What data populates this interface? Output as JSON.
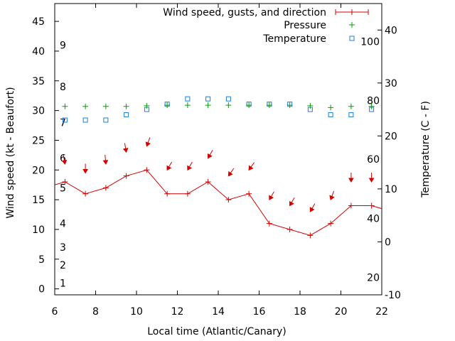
{
  "chart_data": {
    "type": "line",
    "xlabel": "Local time (Atlantic/Canary)",
    "ylabel_left": "Wind speed (kt - Beaufort)",
    "ylabel_right": "Temperature (C - F)",
    "xlim": [
      6,
      22
    ],
    "ylim_left": [
      -1,
      48
    ],
    "ylim_right": [
      -10,
      45
    ],
    "x_ticks": [
      6,
      8,
      10,
      12,
      14,
      16,
      18,
      20,
      22
    ],
    "y_ticks_left": [
      0,
      5,
      10,
      15,
      20,
      25,
      30,
      35,
      40,
      45
    ],
    "y_ticks_right": [
      -10,
      0,
      10,
      20,
      30,
      40
    ],
    "beaufort_labels": [
      {
        "text": "1",
        "kt": 1
      },
      {
        "text": "2",
        "kt": 4
      },
      {
        "text": "3",
        "kt": 7
      },
      {
        "text": "4",
        "kt": 11
      },
      {
        "text": "5",
        "kt": 17
      },
      {
        "text": "6",
        "kt": 22
      },
      {
        "text": "7",
        "kt": 28
      },
      {
        "text": "8",
        "kt": 34
      },
      {
        "text": "9",
        "kt": 41
      }
    ],
    "fahrenheit_labels": [
      {
        "text": "20",
        "temp_c": -6.7
      },
      {
        "text": "40",
        "temp_c": 4.4
      },
      {
        "text": "60",
        "temp_c": 15.6
      },
      {
        "text": "80",
        "temp_c": 26.7
      },
      {
        "text": "100",
        "temp_c": 37.8
      }
    ],
    "legend": {
      "position": "top-right",
      "entries": [
        "Wind speed, gusts, and direction",
        "Pressure",
        "Temperature"
      ]
    },
    "colors": {
      "wind": "#d40000",
      "pressure": "#00a000",
      "temperature": "#1a7fd4"
    },
    "series": [
      {
        "name": "Wind speed, gusts, and direction",
        "axis": "left",
        "x": [
          5.5,
          6.5,
          7.5,
          8.5,
          9.5,
          10.5,
          11.5,
          12.5,
          13.5,
          14.5,
          15.5,
          16.5,
          17.5,
          18.5,
          19.5,
          20.5,
          21.5,
          22.5
        ],
        "y": [
          17,
          18,
          16,
          17,
          19,
          20,
          16,
          16,
          18,
          15,
          16,
          11,
          10,
          9,
          11,
          14,
          14,
          13
        ],
        "gust_arrow_y": [
          21,
          19.5,
          21,
          23,
          24,
          20,
          20,
          22,
          19,
          20,
          15,
          14,
          13,
          15,
          18,
          18
        ],
        "direction_deg": [
          350,
          0,
          355,
          350,
          20,
          30,
          30,
          30,
          35,
          35,
          30,
          30,
          30,
          20,
          0,
          0
        ]
      },
      {
        "name": "Pressure",
        "axis": "left",
        "x": [
          6.5,
          7.5,
          8.5,
          9.5,
          10.5,
          11.5,
          12.5,
          13.5,
          14.5,
          15.5,
          16.5,
          17.5,
          18.5,
          19.5,
          20.5,
          21.5
        ],
        "y": [
          30.7,
          30.7,
          30.7,
          30.7,
          30.8,
          30.9,
          30.9,
          30.9,
          30.9,
          30.9,
          30.9,
          30.9,
          30.8,
          30.5,
          30.7,
          30.7
        ]
      },
      {
        "name": "Temperature",
        "axis": "right",
        "x": [
          6.5,
          7.5,
          8.5,
          9.5,
          10.5,
          11.5,
          12.5,
          13.5,
          14.5,
          15.5,
          16.5,
          17.5,
          18.5,
          19.5,
          20.5,
          21.5
        ],
        "y": [
          23,
          23,
          23,
          24,
          25,
          26,
          27,
          27,
          27,
          26,
          26,
          26,
          25,
          24,
          24,
          25
        ]
      }
    ]
  }
}
